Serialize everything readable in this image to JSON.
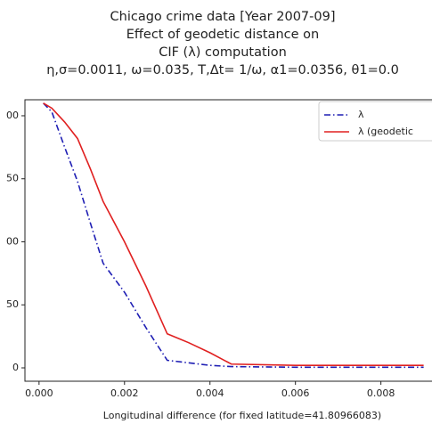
{
  "chart_data": {
    "type": "line",
    "title": [
      "Chicago crime data [Year 2007-09]",
      "Effect of geodetic distance on",
      "CIF (λ) computation",
      "η,σ=0.0011, ω=0.035, T,Δt= 1/ω, α1=0.0356, θ1=0.0"
    ],
    "x_label": "Longitudinal difference (for fixed latitude=41.80966083)",
    "x": [
      0.0001,
      0.0003,
      0.0006,
      0.0009,
      0.0012,
      0.0015,
      0.002,
      0.0025,
      0.003,
      0.0035,
      0.004,
      0.0045,
      0.006,
      0.009
    ],
    "series": [
      {
        "name": "λ",
        "color": "#1f1fb4",
        "dash": "dashdot",
        "values": [
          210,
          203,
          175,
          148,
          115,
          83,
          60,
          32,
          6,
          4,
          2,
          1,
          0.5,
          0.5
        ]
      },
      {
        "name": "λ (geodetic",
        "color": "#e02020",
        "dash": "solid",
        "values": [
          210,
          206,
          195,
          182,
          158,
          132,
          100,
          65,
          27,
          20,
          12,
          3,
          2,
          2
        ]
      }
    ],
    "xlim": [
      -0.00033,
      0.0093
    ],
    "ylim": [
      -10.6,
      212.7
    ],
    "xticks": [
      {
        "value": 0,
        "label": "0.000"
      },
      0.002,
      0.004,
      0.006,
      0.008
    ],
    "yticks": [
      0,
      {
        "value": 50,
        "label": "50"
      },
      {
        "value": 100,
        "label": "00"
      },
      {
        "value": 150,
        "label": "50"
      },
      {
        "value": 200,
        "label": "00"
      }
    ],
    "legend": "upper right"
  }
}
